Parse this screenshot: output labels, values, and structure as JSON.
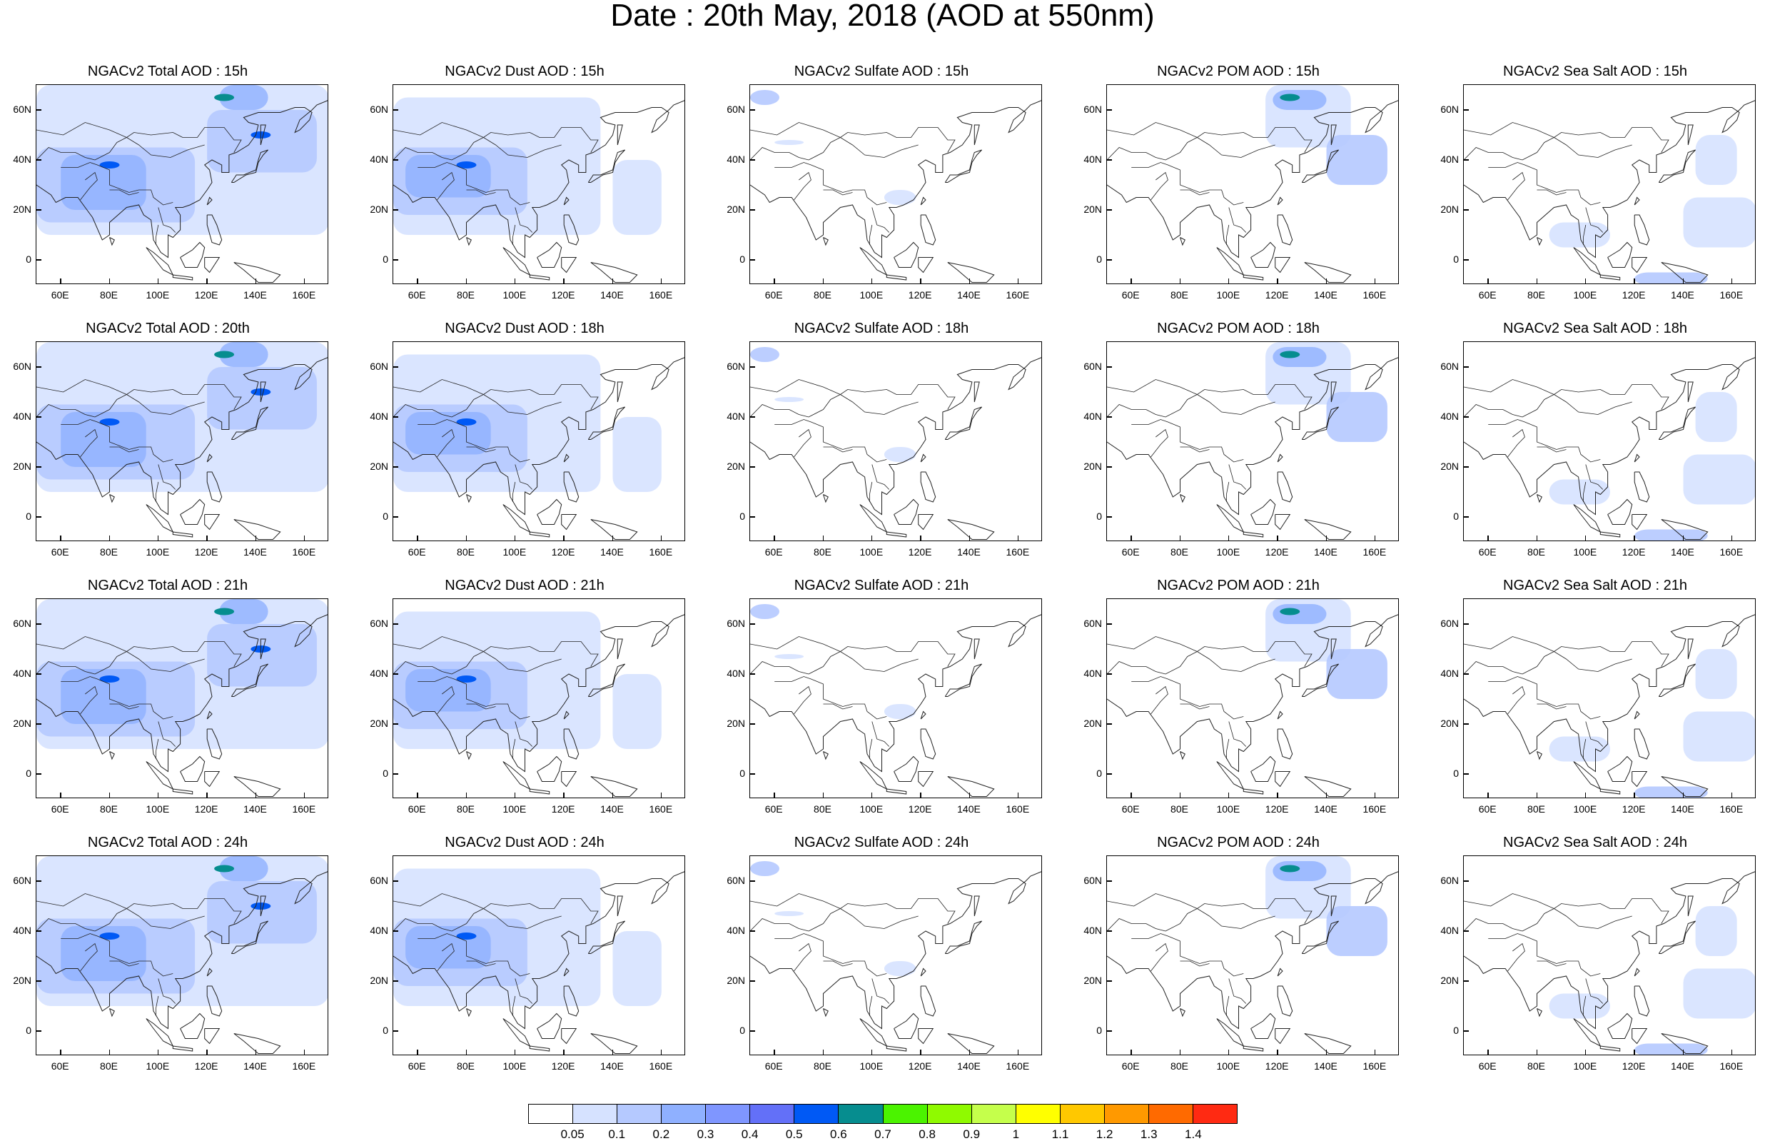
{
  "title": "Date : 20th May, 2018 (AOD at 550nm)",
  "latitude_labels": [
    "60N",
    "40N",
    "20N",
    "0"
  ],
  "latitude_values": [
    60,
    40,
    20,
    0
  ],
  "longitude_labels": [
    "60E",
    "80E",
    "100E",
    "120E",
    "140E",
    "160E"
  ],
  "longitude_values": [
    60,
    80,
    100,
    120,
    140,
    160
  ],
  "map_extent": {
    "lon": [
      50,
      170
    ],
    "lat": [
      -10,
      70
    ]
  },
  "columns": [
    "total",
    "dust",
    "sulfate",
    "pom",
    "seasalt"
  ],
  "panels": [
    {
      "title": "NGACv2 Total AOD : 15h",
      "species": "total"
    },
    {
      "title": "NGACv2 Dust AOD : 15h",
      "species": "dust"
    },
    {
      "title": "NGACv2 Sulfate AOD : 15h",
      "species": "sulfate"
    },
    {
      "title": "NGACv2 POM AOD : 15h",
      "species": "pom"
    },
    {
      "title": "NGACv2 Sea Salt AOD : 15h",
      "species": "seasalt"
    },
    {
      "title": "NGACv2 Total AOD : 20th",
      "species": "total"
    },
    {
      "title": "NGACv2 Dust AOD : 18h",
      "species": "dust"
    },
    {
      "title": "NGACv2 Sulfate AOD : 18h",
      "species": "sulfate"
    },
    {
      "title": "NGACv2 POM AOD : 18h",
      "species": "pom"
    },
    {
      "title": "NGACv2 Sea Salt AOD : 18h",
      "species": "seasalt"
    },
    {
      "title": "NGACv2 Total AOD : 21h",
      "species": "total"
    },
    {
      "title": "NGACv2 Dust AOD : 21h",
      "species": "dust"
    },
    {
      "title": "NGACv2 Sulfate AOD : 21h",
      "species": "sulfate"
    },
    {
      "title": "NGACv2 POM AOD : 21h",
      "species": "pom"
    },
    {
      "title": "NGACv2 Sea Salt AOD : 21h",
      "species": "seasalt"
    },
    {
      "title": "NGACv2 Total AOD : 24h",
      "species": "total"
    },
    {
      "title": "NGACv2 Dust AOD : 24h",
      "species": "dust"
    },
    {
      "title": "NGACv2 Sulfate AOD : 24h",
      "species": "sulfate"
    },
    {
      "title": "NGACv2 POM AOD : 24h",
      "species": "pom"
    },
    {
      "title": "NGACv2 Sea Salt  AOD : 24h",
      "species": "seasalt"
    }
  ],
  "colorbar": {
    "labels": [
      "0.05",
      "0.1",
      "0.2",
      "0.3",
      "0.4",
      "0.5",
      "0.6",
      "0.7",
      "0.8",
      "0.9",
      "1",
      "1.1",
      "1.2",
      "1.3",
      "1.4"
    ],
    "colors": [
      "#ffffff",
      "#d6e2ff",
      "#b5c9ff",
      "#8fb0ff",
      "#7f96ff",
      "#6370f8",
      "#0059f5",
      "#068d8f",
      "#4bf300",
      "#8ffa00",
      "#c5ff4b",
      "#ffff00",
      "#ffc800",
      "#ff9900",
      "#ff6a00",
      "#ff2a12"
    ]
  },
  "aod_features": {
    "total": [
      {
        "lon": 80,
        "lat": 38,
        "level": 6
      },
      {
        "lon": 127,
        "lat": 65,
        "level": 7
      },
      {
        "lon": 142,
        "lat": 50,
        "level": 6
      }
    ],
    "dust": [
      {
        "lon": 80,
        "lat": 38,
        "level": 6
      }
    ],
    "sulfate": [],
    "pom": [
      {
        "lon": 125,
        "lat": 65,
        "level": 7
      }
    ],
    "seasalt": []
  }
}
